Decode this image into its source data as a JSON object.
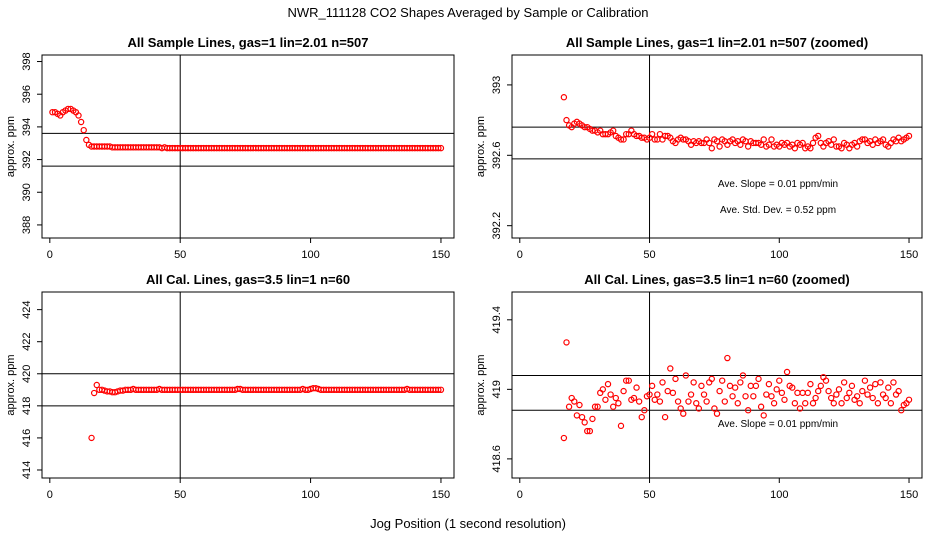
{
  "title": "NWR_111128  CO2 Shapes Averaged by Sample or Calibration",
  "xlabel": "Jog Position (1 second resolution)",
  "colors": {
    "points": "#ff0000",
    "axes": "#000000"
  },
  "chart_data": [
    {
      "type": "scatter",
      "title": "All Sample Lines, gas=1 lin=2.01 n=507",
      "ylabel": "approx. ppm",
      "xlim": [
        -3,
        155
      ],
      "ylim": [
        387.2,
        398.4
      ],
      "xticks": [
        0,
        50,
        100,
        150
      ],
      "yticks": [
        388,
        390,
        392,
        394,
        396,
        398
      ],
      "hlines": [
        393.6,
        391.6
      ],
      "vline": 50,
      "x_start": 1,
      "x_step": 1,
      "y": [
        394.9,
        394.9,
        394.8,
        394.7,
        394.9,
        395.0,
        395.1,
        395.1,
        395.0,
        394.9,
        394.7,
        394.3,
        393.8,
        393.2,
        392.9,
        392.8,
        392.8,
        392.8,
        392.8,
        392.8,
        392.8,
        392.8,
        392.8,
        392.75,
        392.75,
        392.75,
        392.75,
        392.75,
        392.75,
        392.75,
        392.75,
        392.75,
        392.75,
        392.75,
        392.75,
        392.75,
        392.75,
        392.75,
        392.75,
        392.75,
        392.75,
        392.75,
        392.7,
        392.75,
        392.7,
        392.7,
        392.7,
        392.7,
        392.7,
        392.7,
        392.7,
        392.7,
        392.7,
        392.7,
        392.7,
        392.7,
        392.7,
        392.7,
        392.7,
        392.7,
        392.7,
        392.7,
        392.7,
        392.7,
        392.7,
        392.7,
        392.7,
        392.7,
        392.7,
        392.7,
        392.7,
        392.7,
        392.7,
        392.7,
        392.7,
        392.7,
        392.7,
        392.7,
        392.7,
        392.7,
        392.7,
        392.7,
        392.7,
        392.7,
        392.7,
        392.7,
        392.7,
        392.7,
        392.7,
        392.7,
        392.7,
        392.7,
        392.7,
        392.7,
        392.7,
        392.7,
        392.7,
        392.7,
        392.7,
        392.7,
        392.7,
        392.7,
        392.7,
        392.7,
        392.7,
        392.7,
        392.7,
        392.7,
        392.7,
        392.7,
        392.7,
        392.7,
        392.7,
        392.7,
        392.7,
        392.7,
        392.7,
        392.7,
        392.7,
        392.7,
        392.7,
        392.7,
        392.7,
        392.7,
        392.7,
        392.7,
        392.7,
        392.7,
        392.7,
        392.7,
        392.7,
        392.7,
        392.7,
        392.7,
        392.7,
        392.7,
        392.7,
        392.7,
        392.7,
        392.7,
        392.7,
        392.7,
        392.7,
        392.7,
        392.7,
        392.7,
        392.7,
        392.7,
        392.7,
        392.7
      ],
      "annotations": []
    },
    {
      "type": "scatter",
      "title": "All Sample Lines, gas=1 lin=2.01 n=507 (zoomed)",
      "ylabel": "approx. ppm",
      "xlim": [
        -3,
        155
      ],
      "ylim": [
        392.13,
        393.17
      ],
      "xticks": [
        0,
        50,
        100,
        150
      ],
      "yticks": [
        392.2,
        392.6,
        393.0
      ],
      "hlines": [
        392.76,
        392.58
      ],
      "vline": 50,
      "x_start": 17,
      "x_step": 1,
      "y": [
        392.93,
        392.8,
        392.77,
        392.76,
        392.78,
        392.79,
        392.78,
        392.77,
        392.76,
        392.76,
        392.75,
        392.74,
        392.74,
        392.73,
        392.74,
        392.72,
        392.72,
        392.72,
        392.73,
        392.74,
        392.71,
        392.7,
        392.69,
        392.69,
        392.72,
        392.72,
        392.74,
        392.72,
        392.71,
        392.71,
        392.7,
        392.7,
        392.69,
        392.7,
        392.72,
        392.69,
        392.69,
        392.72,
        392.69,
        392.71,
        392.71,
        392.7,
        392.68,
        392.67,
        392.69,
        392.7,
        392.69,
        392.69,
        392.68,
        392.66,
        392.68,
        392.67,
        392.68,
        392.67,
        392.67,
        392.69,
        392.67,
        392.64,
        392.69,
        392.68,
        392.65,
        392.69,
        392.68,
        392.66,
        392.68,
        392.69,
        392.67,
        392.68,
        392.66,
        392.69,
        392.68,
        392.65,
        392.68,
        392.67,
        392.67,
        392.67,
        392.66,
        392.69,
        392.65,
        392.66,
        392.69,
        392.65,
        392.66,
        392.65,
        392.67,
        392.66,
        392.67,
        392.65,
        392.66,
        392.64,
        392.67,
        392.66,
        392.67,
        392.64,
        392.65,
        392.64,
        392.67,
        392.7,
        392.71,
        392.67,
        392.65,
        392.67,
        392.68,
        392.66,
        392.69,
        392.65,
        392.65,
        392.64,
        392.67,
        392.66,
        392.64,
        392.66,
        392.67,
        392.65,
        392.68,
        392.69,
        392.69,
        392.67,
        392.68,
        392.66,
        392.69,
        392.67,
        392.68,
        392.69,
        392.66,
        392.65,
        392.67,
        392.69,
        392.68,
        392.7,
        392.68,
        392.69,
        392.7,
        392.71
      ],
      "annotations": [
        "Ave. Slope =  0.01  ppm/min",
        "Ave. Std. Dev. =  0.52  ppm"
      ]
    },
    {
      "type": "scatter",
      "title": "All Cal. Lines, gas=3.5 lin=1 n=60",
      "ylabel": "approx. ppm",
      "xlim": [
        -3,
        155
      ],
      "ylim": [
        413.5,
        425.1
      ],
      "xticks": [
        0,
        50,
        100,
        150
      ],
      "yticks": [
        414,
        416,
        418,
        420,
        422,
        424
      ],
      "hlines": [
        420.0,
        418.0
      ],
      "vline": 50,
      "x_start": 16,
      "x_step": 1,
      "y": [
        416.0,
        418.8,
        419.3,
        419.0,
        419.0,
        418.95,
        418.9,
        418.9,
        418.85,
        418.85,
        418.9,
        418.95,
        418.95,
        419.0,
        419.0,
        419.0,
        419.05,
        419.0,
        419.0,
        419.0,
        419.0,
        419.0,
        419.0,
        419.0,
        419.0,
        419.0,
        419.05,
        419.0,
        419.0,
        419.0,
        419.0,
        419.0,
        419.0,
        419.0,
        419.0,
        419.0,
        419.0,
        419.0,
        419.0,
        419.0,
        419.0,
        419.0,
        419.0,
        419.0,
        419.0,
        419.0,
        419.0,
        419.0,
        419.0,
        419.0,
        419.0,
        419.0,
        419.0,
        419.0,
        419.0,
        419.0,
        419.05,
        419.05,
        419.0,
        419.0,
        419.0,
        419.0,
        419.0,
        419.0,
        419.0,
        419.0,
        419.0,
        419.0,
        419.0,
        419.0,
        419.0,
        419.0,
        419.0,
        419.0,
        419.0,
        419.0,
        419.0,
        419.0,
        419.0,
        419.0,
        419.0,
        419.05,
        419.0,
        419.0,
        419.05,
        419.1,
        419.1,
        419.05,
        419.0,
        419.0,
        419.0,
        419.0,
        419.0,
        419.0,
        419.0,
        419.0,
        419.0,
        419.0,
        419.0,
        419.0,
        419.0,
        419.0,
        419.0,
        419.0,
        419.0,
        419.0,
        419.0,
        419.0,
        419.0,
        419.0,
        419.0,
        419.0,
        419.0,
        419.0,
        419.0,
        419.0,
        419.0,
        419.0,
        419.0,
        419.0,
        419.0,
        419.05,
        419.0,
        419.0,
        419.0,
        419.0,
        419.0,
        419.0,
        419.0,
        419.0,
        419.0,
        419.0,
        419.0,
        419.0,
        419.0
      ],
      "annotations": []
    },
    {
      "type": "scatter",
      "title": "All Cal. Lines, gas=3.5 lin=1 n=60 (zoomed)",
      "ylabel": "approx. ppm",
      "xlim": [
        -3,
        155
      ],
      "ylim": [
        418.49,
        419.56
      ],
      "xticks": [
        0,
        50,
        100,
        150
      ],
      "yticks": [
        418.6,
        419.0,
        419.4
      ],
      "hlines": [
        419.08,
        418.88
      ],
      "vline": 50,
      "x_start": 17,
      "x_step": 1,
      "y": [
        418.72,
        419.27,
        418.9,
        418.95,
        418.93,
        418.85,
        418.91,
        418.84,
        418.81,
        418.76,
        418.76,
        418.83,
        418.9,
        418.9,
        418.98,
        419.0,
        418.94,
        419.03,
        418.97,
        418.9,
        418.95,
        418.92,
        418.79,
        418.99,
        419.05,
        419.05,
        418.94,
        418.95,
        419.01,
        418.93,
        418.84,
        418.88,
        418.96,
        418.97,
        419.02,
        418.94,
        418.97,
        418.93,
        419.04,
        418.84,
        418.99,
        419.12,
        418.98,
        419.06,
        418.93,
        418.89,
        418.86,
        419.08,
        418.93,
        418.97,
        419.04,
        418.92,
        418.89,
        419.02,
        418.97,
        418.93,
        419.04,
        419.06,
        418.89,
        418.86,
        418.99,
        419.05,
        418.93,
        419.18,
        419.02,
        418.96,
        419.01,
        418.92,
        419.04,
        419.08,
        418.96,
        418.88,
        419.02,
        418.96,
        419.02,
        419.06,
        418.9,
        418.85,
        418.97,
        419.03,
        418.96,
        418.92,
        419.0,
        419.05,
        418.98,
        418.94,
        419.1,
        419.02,
        419.01,
        418.92,
        418.98,
        418.89,
        418.98,
        418.92,
        418.98,
        419.03,
        418.92,
        418.95,
        418.99,
        419.02,
        419.07,
        419.05,
        418.99,
        418.95,
        418.92,
        418.97,
        419.0,
        418.92,
        419.04,
        418.95,
        418.98,
        419.02,
        418.94,
        418.96,
        418.92,
        418.99,
        419.05,
        418.97,
        419.01,
        418.95,
        419.03,
        418.92,
        419.04,
        418.97,
        418.95,
        419.01,
        418.92,
        419.04,
        418.97,
        418.99,
        418.88,
        418.91,
        418.92,
        418.94
      ],
      "annotations": [
        "Ave. Slope =  0.01  ppm/min"
      ]
    }
  ]
}
